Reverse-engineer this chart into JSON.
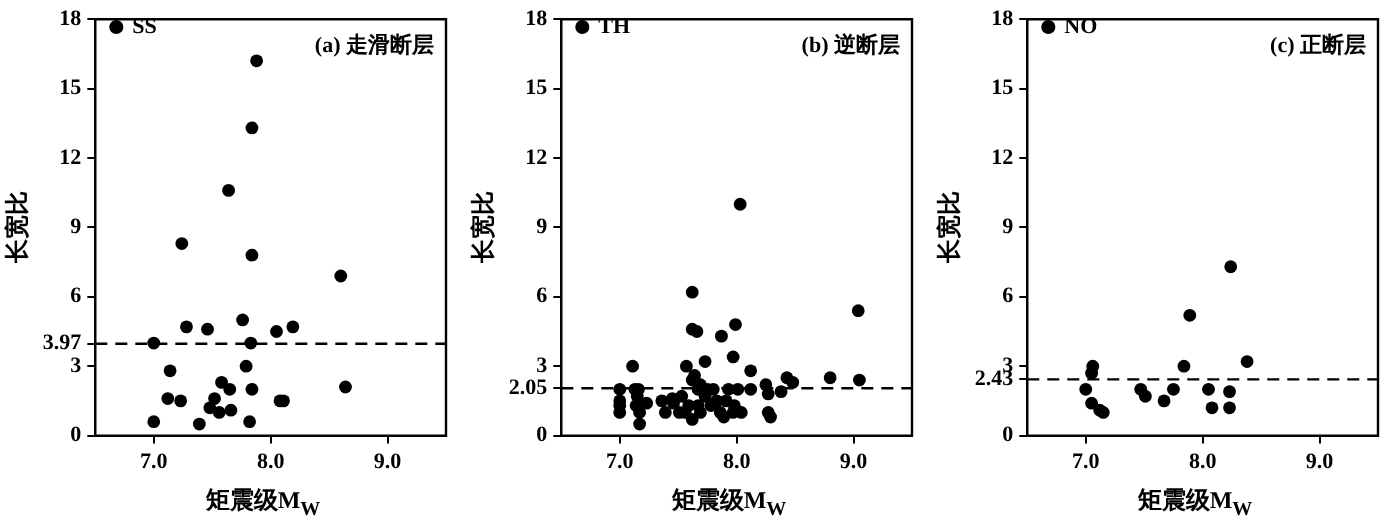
{
  "chart_data": [
    {
      "type": "scatter",
      "xlabel": "矩震级M$_{W}$",
      "ylabel": "长宽比",
      "annotations": [
        "(a) 走滑断层"
      ],
      "legend": "top left",
      "marker": "circle",
      "xlim": [
        6.5,
        9.5
      ],
      "xticks": [
        {
          "value": 7,
          "label": "7.0"
        },
        {
          "value": 8,
          "label": "8.0"
        },
        {
          "value": 9,
          "label": "9.0"
        }
      ],
      "ylim": [
        0,
        18
      ],
      "yticks": [
        0,
        3,
        3.97,
        6,
        9,
        12,
        15,
        18
      ],
      "ref_lines": [
        {
          "axis": "y",
          "value": 3.97,
          "line_style": "dashed",
          "color": "#000000"
        }
      ],
      "series": [
        {
          "name": "SS",
          "color": "#000000",
          "x": [
            7.88,
            7.84,
            7.64,
            7.24,
            7.84,
            8.6,
            7.76,
            7.28,
            7.46,
            8.05,
            8.19,
            7.0,
            7.83,
            7.79,
            7.14,
            7.58,
            7.65,
            7.84,
            8.64,
            7.12,
            7.23,
            7.52,
            7.48,
            7.66,
            7.56,
            8.08,
            8.11,
            7.0,
            7.39,
            7.82
          ],
          "values": [
            16.2,
            13.3,
            10.6,
            8.3,
            7.8,
            6.9,
            5.0,
            4.7,
            4.6,
            4.5,
            4.7,
            4.0,
            4.0,
            3.0,
            2.8,
            2.3,
            2.0,
            2.0,
            2.1,
            1.6,
            1.5,
            1.6,
            1.2,
            1.1,
            1.0,
            1.5,
            1.5,
            0.6,
            0.5,
            0.6
          ]
        }
      ]
    },
    {
      "type": "scatter",
      "xlabel": "矩震级M$_{W}$",
      "ylabel": "长宽比",
      "annotations": [
        "(b) 逆断层"
      ],
      "legend": "top left",
      "marker": "circle",
      "xlim": [
        6.5,
        9.5
      ],
      "xticks": [
        {
          "value": 7,
          "label": "7.0"
        },
        {
          "value": 8,
          "label": "8.0"
        },
        {
          "value": 9,
          "label": "9.0"
        }
      ],
      "ylim": [
        0,
        18
      ],
      "yticks": [
        0,
        2.05,
        3,
        6,
        9,
        12,
        15,
        18
      ],
      "ref_lines": [
        {
          "axis": "y",
          "value": 2.05,
          "line_style": "dashed",
          "color": "#000000"
        }
      ],
      "series": [
        {
          "name": "TH",
          "color": "#000000",
          "x": [
            8.03,
            9.04,
            7.62,
            7.62,
            7.66,
            7.99,
            7.87,
            7.97,
            7.73,
            7.11,
            7.57,
            8.12,
            8.8,
            8.43,
            9.05,
            8.48,
            8.25,
            7.0,
            7.13,
            7.16,
            7.15,
            7.0,
            7.0,
            7.0,
            7.17,
            7.14,
            7.23,
            7.17,
            7.36,
            7.39,
            7.45,
            7.46,
            7.51,
            7.53,
            7.62,
            7.93,
            8.01,
            8.12,
            8.38,
            8.27,
            8.27,
            8.29,
            7.98,
            8.04,
            7.86,
            7.89,
            7.97,
            7.83,
            7.78,
            7.69,
            7.67,
            7.73,
            7.62,
            7.64,
            7.67,
            7.75,
            7.69,
            7.59,
            7.56,
            7.8,
            7.91
          ],
          "values": [
            10.0,
            5.4,
            6.2,
            4.6,
            4.5,
            4.8,
            4.3,
            3.4,
            3.2,
            3.0,
            3.0,
            2.8,
            2.5,
            2.5,
            2.4,
            2.3,
            2.2,
            2.0,
            2.0,
            2.0,
            1.7,
            1.5,
            1.3,
            1.0,
            1.0,
            1.3,
            1.4,
            0.5,
            1.5,
            1.0,
            1.6,
            1.4,
            1.0,
            1.7,
            0.7,
            2.0,
            2.0,
            2.0,
            1.9,
            1.8,
            1.0,
            0.8,
            1.3,
            1.0,
            1.0,
            0.8,
            1.0,
            1.5,
            1.3,
            1.0,
            1.3,
            1.7,
            2.4,
            2.6,
            2.0,
            2.0,
            2.2,
            1.3,
            1.0,
            2.0,
            1.5
          ]
        }
      ]
    },
    {
      "type": "scatter",
      "xlabel": "矩震级M$_{W}$",
      "ylabel": "长宽比",
      "annotations": [
        "(c) 正断层"
      ],
      "legend": "top left",
      "marker": "circle",
      "xlim": [
        6.5,
        9.5
      ],
      "xticks": [
        {
          "value": 7,
          "label": "7.0"
        },
        {
          "value": 8,
          "label": "8.0"
        },
        {
          "value": 9,
          "label": "9.0"
        }
      ],
      "ylim": [
        0,
        18
      ],
      "yticks": [
        0,
        2.43,
        3,
        6,
        9,
        12,
        15,
        18
      ],
      "ref_lines": [
        {
          "axis": "y",
          "value": 2.43,
          "line_style": "dashed",
          "color": "#000000"
        }
      ],
      "series": [
        {
          "name": "NO",
          "color": "#000000",
          "x": [
            7.06,
            7.05,
            7.0,
            7.05,
            7.12,
            7.15,
            7.47,
            7.51,
            7.67,
            7.75,
            7.84,
            7.89,
            8.05,
            8.08,
            8.23,
            8.23,
            8.24,
            8.38
          ],
          "values": [
            3.0,
            2.7,
            2.0,
            1.4,
            1.1,
            1.0,
            2.0,
            1.7,
            1.5,
            2.0,
            3.0,
            5.2,
            2.0,
            1.2,
            1.9,
            1.2,
            7.3,
            3.2
          ]
        }
      ]
    }
  ]
}
